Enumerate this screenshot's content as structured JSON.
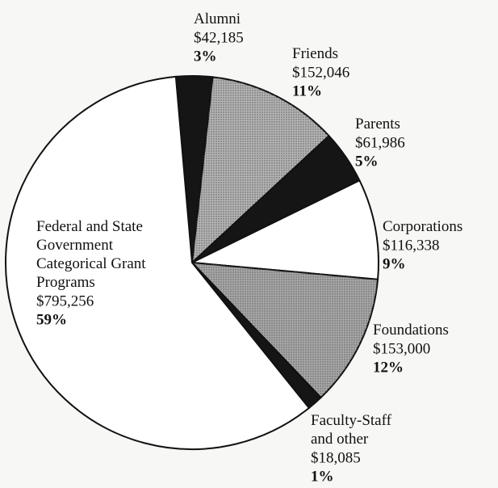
{
  "chart_data": {
    "type": "pie",
    "categories": [
      "Alumni",
      "Friends",
      "Parents",
      "Corporations",
      "Foundations",
      "Faculty-Staff\nand other",
      "Federal and State\nGovernment\nCategorical Grant\nPrograms"
    ],
    "values": [
      42185,
      152046,
      61986,
      116338,
      153000,
      18085,
      795256
    ],
    "value_labels": [
      "$42,185",
      "$152,046",
      "$61,986",
      "$116,338",
      "$153,000",
      "$18,085",
      "$795,256"
    ],
    "percents": [
      3,
      11,
      5,
      9,
      12,
      1,
      59
    ],
    "percent_labels": [
      "3%",
      "11%",
      "5%",
      "9%",
      "12%",
      "1%",
      "59%"
    ],
    "colors": [
      "#151515",
      "#b4b4b4",
      "#151515",
      "#ffffff",
      "#a8a8a8",
      "#151515",
      "#ffffff"
    ]
  }
}
